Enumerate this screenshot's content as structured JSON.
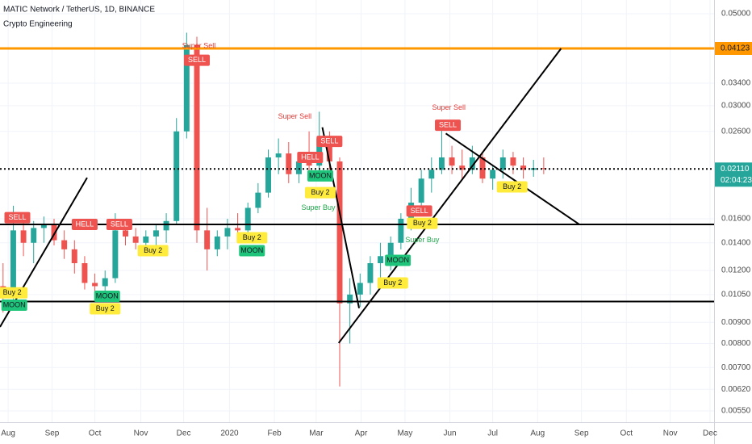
{
  "chart_data": {
    "type": "candlestick",
    "title": "MATIC Network / TetherUS, 1D, BINANCE",
    "subtitle": "Crypto Engineering",
    "log_scale": true,
    "grid": true,
    "up_color": "#26a69a",
    "down_color": "#ef5350",
    "xlim": [
      0,
      70
    ],
    "xticks": [
      {
        "value": 0.8,
        "label": "Aug"
      },
      {
        "value": 5.1,
        "label": "Sep"
      },
      {
        "value": 9.3,
        "label": "Oct"
      },
      {
        "value": 13.8,
        "label": "Nov"
      },
      {
        "value": 18.0,
        "label": "Dec"
      },
      {
        "value": 22.5,
        "label": "2020"
      },
      {
        "value": 26.9,
        "label": "Feb"
      },
      {
        "value": 31.0,
        "label": "Mar"
      },
      {
        "value": 35.4,
        "label": "Apr"
      },
      {
        "value": 39.7,
        "label": "May"
      },
      {
        "value": 44.1,
        "label": "Jun"
      },
      {
        "value": 48.3,
        "label": "Jul"
      },
      {
        "value": 52.7,
        "label": "Aug"
      },
      {
        "value": 57.0,
        "label": "Sep"
      },
      {
        "value": 61.4,
        "label": "Oct"
      },
      {
        "value": 65.7,
        "label": "Nov"
      },
      {
        "value": 69.6,
        "label": "Dec"
      }
    ],
    "ylim": [
      0.0055,
      0.05
    ],
    "yticks": [
      {
        "value": 0.0055,
        "label": "0.00550"
      },
      {
        "value": 0.0062,
        "label": "0.00620"
      },
      {
        "value": 0.007,
        "label": "0.00700"
      },
      {
        "value": 0.008,
        "label": "0.00800"
      },
      {
        "value": 0.009,
        "label": "0.00900"
      },
      {
        "value": 0.0105,
        "label": "0.01050"
      },
      {
        "value": 0.012,
        "label": "0.01200"
      },
      {
        "value": 0.014,
        "label": "0.01400"
      },
      {
        "value": 0.016,
        "label": "0.01600"
      },
      {
        "value": 0.026,
        "label": "0.02600"
      },
      {
        "value": 0.03,
        "label": "0.03000"
      },
      {
        "value": 0.034,
        "label": "0.03400"
      },
      {
        "value": 0.05,
        "label": "0.05000"
      }
    ],
    "x": [
      0.3,
      1.3,
      2.3,
      3.3,
      4.3,
      5.3,
      6.3,
      7.3,
      8.3,
      9.3,
      10.3,
      11.3,
      12.3,
      13.3,
      14.3,
      15.3,
      16.3,
      17.3,
      18.3,
      19.3,
      20.3,
      21.3,
      22.3,
      23.3,
      24.3,
      25.3,
      26.3,
      27.3,
      28.3,
      29.3,
      30.3,
      31.3,
      32.3,
      33.3,
      34.3,
      35.3,
      36.3,
      37.3,
      38.3,
      39.3,
      40.3,
      41.3,
      42.3,
      43.3,
      44.3,
      45.3,
      46.3,
      47.3,
      48.3,
      49.3,
      50.3,
      51.3,
      52.3,
      53.3
    ],
    "open": [
      0.011,
      0.0105,
      0.015,
      0.014,
      0.0152,
      0.0155,
      0.0142,
      0.0135,
      0.0125,
      0.0112,
      0.011,
      0.0115,
      0.015,
      0.0145,
      0.014,
      0.0145,
      0.015,
      0.0158,
      0.026,
      0.042,
      0.015,
      0.0135,
      0.0145,
      0.0152,
      0.015,
      0.017,
      0.0185,
      0.0225,
      0.023,
      0.0205,
      0.022,
      0.0215,
      0.025,
      0.022,
      0.01,
      0.0105,
      0.0112,
      0.0125,
      0.013,
      0.014,
      0.016,
      0.0175,
      0.02,
      0.021,
      0.0225,
      0.0215,
      0.021,
      0.0225,
      0.02,
      0.021,
      0.0225,
      0.0215,
      0.021,
      0.0212
    ],
    "high": [
      0.0125,
      0.0172,
      0.0165,
      0.0158,
      0.0162,
      0.016,
      0.015,
      0.0142,
      0.013,
      0.0118,
      0.012,
      0.0165,
      0.016,
      0.0152,
      0.015,
      0.0155,
      0.0165,
      0.028,
      0.045,
      0.044,
      0.017,
      0.015,
      0.016,
      0.0165,
      0.0175,
      0.0195,
      0.0235,
      0.025,
      0.0245,
      0.023,
      0.026,
      0.029,
      0.026,
      0.0225,
      0.0115,
      0.0118,
      0.013,
      0.014,
      0.0145,
      0.0165,
      0.019,
      0.021,
      0.0225,
      0.027,
      0.024,
      0.0235,
      0.024,
      0.023,
      0.0215,
      0.0235,
      0.0232,
      0.0225,
      0.0222,
      0.0225
    ],
    "low": [
      0.0095,
      0.0102,
      0.013,
      0.0125,
      0.014,
      0.0138,
      0.0128,
      0.0118,
      0.0108,
      0.0102,
      0.0103,
      0.0112,
      0.0138,
      0.0135,
      0.0132,
      0.0138,
      0.014,
      0.0155,
      0.025,
      0.014,
      0.012,
      0.013,
      0.0135,
      0.0142,
      0.0145,
      0.0165,
      0.018,
      0.0205,
      0.0195,
      0.0195,
      0.02,
      0.02,
      0.021,
      0.0063,
      0.008,
      0.0098,
      0.0105,
      0.0115,
      0.012,
      0.0135,
      0.015,
      0.0165,
      0.0185,
      0.0205,
      0.0205,
      0.02,
      0.0205,
      0.0195,
      0.0188,
      0.02,
      0.0205,
      0.02,
      0.0202,
      0.0205
    ],
    "close": [
      0.0105,
      0.015,
      0.014,
      0.0152,
      0.0155,
      0.0142,
      0.0135,
      0.0125,
      0.0112,
      0.011,
      0.0115,
      0.015,
      0.0145,
      0.014,
      0.0145,
      0.015,
      0.0158,
      0.026,
      0.042,
      0.015,
      0.0135,
      0.0145,
      0.0152,
      0.015,
      0.017,
      0.0185,
      0.0225,
      0.023,
      0.0205,
      0.022,
      0.0215,
      0.025,
      0.022,
      0.01,
      0.0105,
      0.0112,
      0.0125,
      0.013,
      0.014,
      0.016,
      0.0175,
      0.02,
      0.021,
      0.0225,
      0.0215,
      0.021,
      0.0225,
      0.02,
      0.021,
      0.0225,
      0.0215,
      0.021,
      0.0212,
      0.0211
    ],
    "hlines": [
      {
        "value": 0.04123,
        "label": "0.04123",
        "color": "#ff9800",
        "width": 3
      },
      {
        "value": 0.0155,
        "color": "#000000",
        "width": 2
      },
      {
        "value": 0.0101,
        "color": "#000000",
        "width": 2
      }
    ],
    "last_price": {
      "value": 0.0211,
      "label": "0.02110",
      "color": "#26a69a"
    },
    "countdown": "02:04:23",
    "trendlines": [
      {
        "x": [
          0,
          8.54
        ],
        "y": [
          0.00877,
          0.0201
        ]
      },
      {
        "x": [
          33.2,
          55.0
        ],
        "y": [
          0.00802,
          0.0412
        ]
      },
      {
        "x": [
          31.6,
          35.2
        ],
        "y": [
          0.0266,
          0.00973
        ]
      },
      {
        "x": [
          43.7,
          56.8
        ],
        "y": [
          0.0257,
          0.0155
        ]
      }
    ],
    "annotations": [
      {
        "text": "SELL",
        "x": 1.7,
        "y": 0.0161,
        "style": "sell"
      },
      {
        "text": "HELL",
        "x": 8.3,
        "y": 0.0155,
        "style": "sell"
      },
      {
        "text": "SELL",
        "x": 11.7,
        "y": 0.0155,
        "style": "sell"
      },
      {
        "text": "SELL",
        "x": 19.3,
        "y": 0.0386,
        "style": "sell"
      },
      {
        "text": "HELL",
        "x": 30.4,
        "y": 0.0225,
        "style": "sell"
      },
      {
        "text": "SELL",
        "x": 32.3,
        "y": 0.0246,
        "style": "sell"
      },
      {
        "text": "SELL",
        "x": 43.9,
        "y": 0.0269,
        "style": "sell"
      },
      {
        "text": "SELL",
        "x": 41.1,
        "y": 0.0167,
        "style": "sell"
      },
      {
        "text": "Super Sell",
        "x": 19.5,
        "y": 0.0418,
        "style": "super-sell"
      },
      {
        "text": "Super Sell",
        "x": 28.9,
        "y": 0.0282,
        "style": "super-sell"
      },
      {
        "text": "Super Sell",
        "x": 44.0,
        "y": 0.0296,
        "style": "super-sell"
      },
      {
        "text": "MOON",
        "x": 1.4,
        "y": 0.0099,
        "style": "moon"
      },
      {
        "text": "MOON",
        "x": 10.5,
        "y": 0.0104,
        "style": "moon"
      },
      {
        "text": "MOON",
        "x": 24.7,
        "y": 0.0134,
        "style": "moon"
      },
      {
        "text": "MOON",
        "x": 31.4,
        "y": 0.0203,
        "style": "moon"
      },
      {
        "text": "MOON",
        "x": 39.0,
        "y": 0.0127,
        "style": "moon"
      },
      {
        "text": "Buy 2",
        "x": 1.2,
        "y": 0.0106,
        "style": "buy"
      },
      {
        "text": "Buy 2",
        "x": 10.3,
        "y": 0.0097,
        "style": "buy"
      },
      {
        "text": "Buy 2",
        "x": 15.0,
        "y": 0.0134,
        "style": "buy"
      },
      {
        "text": "Buy 2",
        "x": 24.7,
        "y": 0.0144,
        "style": "buy"
      },
      {
        "text": "Buy 2",
        "x": 31.4,
        "y": 0.0185,
        "style": "buy"
      },
      {
        "text": "Buy 2",
        "x": 38.5,
        "y": 0.0112,
        "style": "buy"
      },
      {
        "text": "Buy 2",
        "x": 41.4,
        "y": 0.0156,
        "style": "buy"
      },
      {
        "text": "Buy 2",
        "x": 50.2,
        "y": 0.0191,
        "style": "buy"
      },
      {
        "text": "Super Buy",
        "x": 31.2,
        "y": 0.017,
        "style": "super-buy"
      },
      {
        "text": "Super Buy",
        "x": 41.4,
        "y": 0.0142,
        "style": "super-buy"
      }
    ]
  }
}
